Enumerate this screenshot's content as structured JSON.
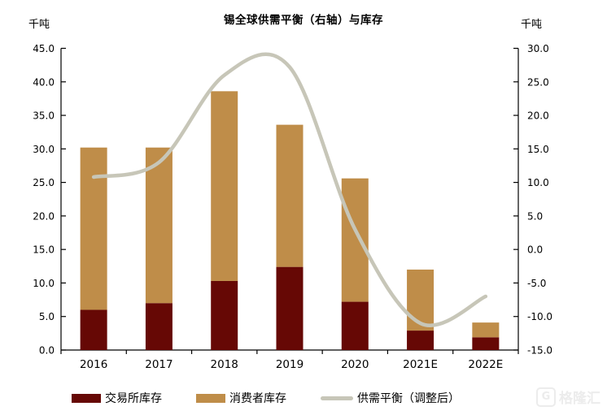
{
  "watermark": {
    "logo_letter": "G",
    "text": "格隆汇"
  },
  "chart_data": {
    "type": "bar",
    "subtype": "stacked-bar-with-line",
    "title": "锡全球供需平衡（右轴）与库存",
    "categories": [
      "2016",
      "2017",
      "2018",
      "2019",
      "2020",
      "2021E",
      "2022E"
    ],
    "series": [
      {
        "name": "交易所库存",
        "type": "bar",
        "stack": "inventory",
        "axis": "left",
        "color": "#660805",
        "values": [
          6.0,
          7.0,
          10.3,
          12.4,
          7.2,
          2.9,
          1.9
        ]
      },
      {
        "name": "消费者库存",
        "type": "bar",
        "stack": "inventory",
        "axis": "left",
        "color": "#BF8D49",
        "values": [
          24.2,
          23.2,
          28.3,
          21.2,
          18.4,
          9.1,
          2.2
        ]
      },
      {
        "name": "供需平衡（调整后）",
        "type": "line",
        "smooth": true,
        "axis": "right",
        "color": "#C7C6B8",
        "values": [
          10.8,
          13.0,
          26.0,
          27.2,
          3.0,
          -11.0,
          -7.0
        ]
      }
    ],
    "left_axis": {
      "unit": "千吨",
      "min": 0,
      "max": 45,
      "step": 5,
      "tick_format": "0.0"
    },
    "right_axis": {
      "unit": "千吨",
      "min": -15,
      "max": 30,
      "step": 5,
      "tick_format": "0.0"
    },
    "grid": false,
    "legend_position": "bottom"
  }
}
